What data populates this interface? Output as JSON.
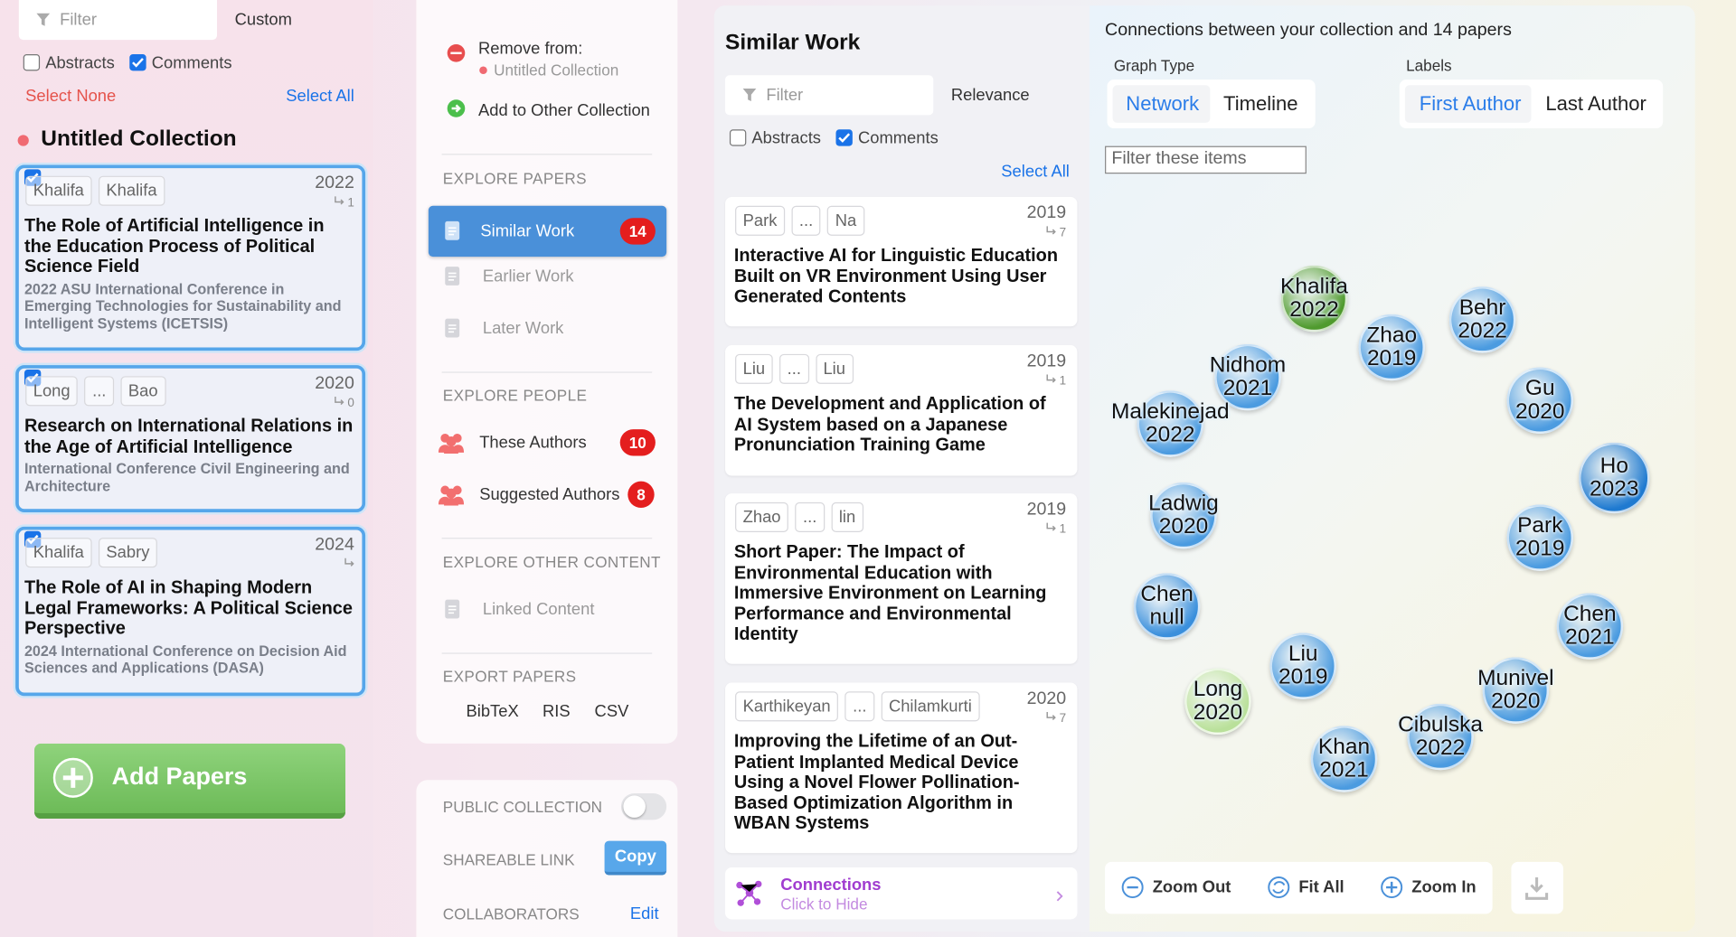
{
  "left_panel": {
    "filter": "Filter",
    "sort": "Custom",
    "abstracts": "Abstracts",
    "comments": "Comments",
    "select_none": "Select None",
    "select_all": "Select All",
    "collection": "Untitled Collection",
    "papers": [
      {
        "authors": [
          "Khalifa",
          "Khalifa"
        ],
        "year": 2022,
        "citations": 1,
        "title": "The Role of Artificial Intelligence in the Education Process of Political Science Field",
        "venue": "2022 ASU International Conference in Emerging Technologies for Sustainability and Intelligent Systems (ICETSIS)"
      },
      {
        "authors": [
          "Long",
          "...",
          "Bao"
        ],
        "year": 2020,
        "citations": 0,
        "title": "Research on International Relations in the Age of Artificial Intelligence",
        "venue": "International Conference Civil Engineering and Architecture"
      },
      {
        "authors": [
          "Khalifa",
          "Sabry"
        ],
        "year": 2024,
        "title": "The Role of AI in Shaping Modern Legal Frameworks: A Political Science Perspective",
        "venue": "2024 International Conference on Decision Aid Sciences and Applications (DASA)"
      }
    ],
    "add_papers": "Add Papers"
  },
  "menu": {
    "remove_from": "Remove from:",
    "collection": "Untitled Collection",
    "add_to_other": "Add to Other Collection",
    "sections": [
      {
        "heading": "EXPLORE PAPERS",
        "items": [
          {
            "label": "Similar Work",
            "count": 14
          },
          {
            "label": "Earlier Work"
          },
          {
            "label": "Later Work"
          }
        ]
      },
      {
        "heading": "EXPLORE PEOPLE",
        "items": [
          {
            "label": "These Authors",
            "count": 10
          },
          {
            "label": "Suggested Authors",
            "count": 8
          }
        ]
      },
      {
        "heading": "EXPLORE OTHER CONTENT",
        "items": [
          {
            "label": "Linked Content"
          }
        ]
      },
      {
        "heading": "EXPORT PAPERS",
        "items": [
          {
            "label": "BibTeX"
          },
          {
            "label": "RIS"
          },
          {
            "label": "CSV"
          }
        ]
      }
    ],
    "public_collection": "PUBLIC COLLECTION",
    "shareable_link": "SHAREABLE LINK",
    "copy": "Copy",
    "collaborators": "COLLABORATORS",
    "edit": "Edit"
  },
  "similar_panel": {
    "title": "Similar Work",
    "filter": "Filter",
    "sort": "Relevance",
    "abstracts": "Abstracts",
    "comments": "Comments",
    "select_all": "Select All",
    "papers": [
      {
        "authors": [
          "Park",
          "...",
          "Na"
        ],
        "year": 2019,
        "citations": 7,
        "title": "Interactive AI for Linguistic Education Built on VR Environment Using User Generated Contents"
      },
      {
        "authors": [
          "Liu",
          "...",
          "Liu"
        ],
        "year": 2019,
        "citations": 1,
        "title": "The Development and Application of AI System based on a Japanese Pronunciation Training Game"
      },
      {
        "authors": [
          "Zhao",
          "...",
          "lin"
        ],
        "year": 2019,
        "citations": 1,
        "title": "Short Paper: The Impact of Environmental Education with Immersive Environment on Learning Performance and Environmental Identity"
      },
      {
        "authors": [
          "Karthikeyan",
          "...",
          "Chilamkurti"
        ],
        "year": 2020,
        "citations": 7,
        "title": "Improving the Lifetime of an Out-Patient Implanted Medical Device Using a Novel Flower Pollination-Based Optimization Algorithm in WBAN Systems"
      }
    ],
    "connections": "Connections",
    "click_to_hide": "Click to Hide"
  },
  "graph_panel": {
    "heading": "Connections between your collection and 14 papers",
    "graph_type": "Graph Type",
    "graph_types": [
      "Network",
      "Timeline"
    ],
    "labels": "Labels",
    "label_options": [
      "First Author",
      "Last Author"
    ],
    "filter": "Filter these items",
    "nodes": [
      {
        "author": "Khalifa",
        "year": "2022",
        "color": "#4f9a2e"
      },
      {
        "author": "Zhao",
        "year": "2019",
        "color": "#4b9be0"
      },
      {
        "author": "Behr",
        "year": "2022",
        "color": "#4b9be0"
      },
      {
        "author": "Nidhom",
        "year": "2021",
        "color": "#4b9be0"
      },
      {
        "author": "Malekinejad",
        "year": "2022",
        "color": "#4b9be0"
      },
      {
        "author": "Gu",
        "year": "2020",
        "color": "#4b9be0"
      },
      {
        "author": "Ho",
        "year": "2023",
        "color": "#1f7ad0"
      },
      {
        "author": "Ladwig",
        "year": "2020",
        "color": "#4b9be0"
      },
      {
        "author": "Park",
        "year": "2019",
        "color": "#4b9be0"
      },
      {
        "author": "Chen",
        "year": "null",
        "color": "#3a8fdc"
      },
      {
        "author": "Chen",
        "year": "2021",
        "color": "#4b9be0"
      },
      {
        "author": "Liu",
        "year": "2019",
        "color": "#4b9be0"
      },
      {
        "author": "Long",
        "year": "2020",
        "color": "#b9e09a"
      },
      {
        "author": "Munivel",
        "year": "2020",
        "color": "#4b9be0"
      },
      {
        "author": "Cibulska",
        "year": "2022",
        "color": "#4b9be0"
      },
      {
        "author": "Khan",
        "year": "2021",
        "color": "#4b9be0"
      }
    ],
    "zoom_out": "Zoom Out",
    "fit_all": "Fit All",
    "zoom_in": "Zoom In"
  }
}
